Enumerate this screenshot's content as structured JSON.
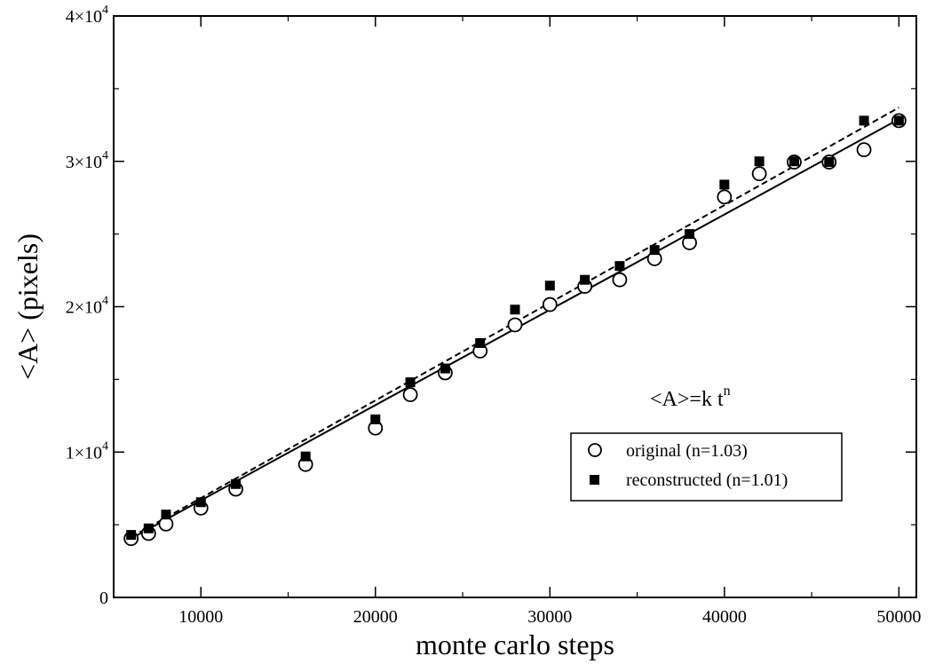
{
  "chart_data": {
    "type": "scatter",
    "xlabel": "monte carlo steps",
    "ylabel": "<A> (pixels)",
    "xlim": [
      5000,
      51000
    ],
    "ylim": [
      0,
      40000
    ],
    "x_ticks": [
      {
        "value": 10000,
        "label": "10000"
      },
      {
        "value": 20000,
        "label": "20000"
      },
      {
        "value": 30000,
        "label": "30000"
      },
      {
        "value": 40000,
        "label": "40000"
      },
      {
        "value": 50000,
        "label": "50000"
      }
    ],
    "y_ticks": [
      {
        "value": 0,
        "label": "0"
      },
      {
        "value": 10000,
        "base": "1×10",
        "exp": "4"
      },
      {
        "value": 20000,
        "base": "2×10",
        "exp": "4"
      },
      {
        "value": 30000,
        "base": "3×10",
        "exp": "4"
      },
      {
        "value": 40000,
        "base": "4×10",
        "exp": "4"
      }
    ],
    "annotation": {
      "text": "<A>=k t",
      "superscript": "n"
    },
    "legend_position": "lower-right",
    "series": [
      {
        "name": "original (n=1.03)",
        "marker": "open-circle",
        "color": "#000000",
        "fit": {
          "style": "solid",
          "x0": 6000,
          "y0": 4050,
          "x1": 50000,
          "y1": 32900
        },
        "points": [
          [
            6000,
            4050
          ],
          [
            7000,
            4400
          ],
          [
            8000,
            5050
          ],
          [
            10000,
            6150
          ],
          [
            12000,
            7450
          ],
          [
            16000,
            9150
          ],
          [
            20000,
            11650
          ],
          [
            22000,
            13950
          ],
          [
            24000,
            15450
          ],
          [
            26000,
            16950
          ],
          [
            28000,
            18750
          ],
          [
            30000,
            20150
          ],
          [
            32000,
            21400
          ],
          [
            34000,
            21850
          ],
          [
            36000,
            23300
          ],
          [
            38000,
            24400
          ],
          [
            40000,
            27550
          ],
          [
            42000,
            29150
          ],
          [
            44000,
            29950
          ],
          [
            46000,
            29950
          ],
          [
            48000,
            30800
          ],
          [
            50000,
            32800
          ]
        ]
      },
      {
        "name": "reconstructed (n=1.01)",
        "marker": "filled-square",
        "color": "#000000",
        "fit": {
          "style": "dashed",
          "x0": 6000,
          "y0": 4150,
          "x1": 50000,
          "y1": 33700
        },
        "points": [
          [
            6000,
            4300
          ],
          [
            7000,
            4750
          ],
          [
            8000,
            5700
          ],
          [
            10000,
            6550
          ],
          [
            12000,
            7800
          ],
          [
            16000,
            9700
          ],
          [
            20000,
            12250
          ],
          [
            22000,
            14800
          ],
          [
            24000,
            15750
          ],
          [
            26000,
            17500
          ],
          [
            28000,
            19800
          ],
          [
            30000,
            21450
          ],
          [
            32000,
            21850
          ],
          [
            34000,
            22800
          ],
          [
            36000,
            23900
          ],
          [
            38000,
            25000
          ],
          [
            40000,
            28400
          ],
          [
            42000,
            30000
          ],
          [
            44000,
            30000
          ],
          [
            46000,
            29950
          ],
          [
            48000,
            32800
          ],
          [
            50000,
            32800
          ]
        ]
      }
    ]
  }
}
